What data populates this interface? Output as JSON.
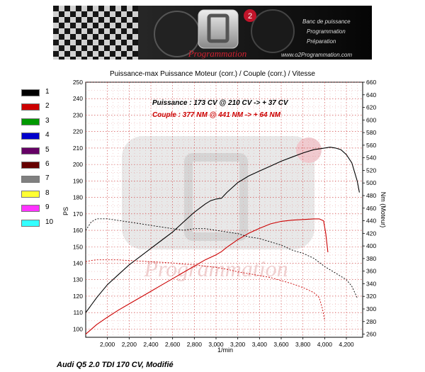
{
  "banner": {
    "logo_text": "Programmation",
    "menu": [
      "Banc de puissance",
      "Programmation",
      "Préparation"
    ],
    "url": "www.o2Programmation.com",
    "logo_badge": "2"
  },
  "legend": [
    {
      "label": "1",
      "color": "#000000"
    },
    {
      "label": "2",
      "color": "#cc0000"
    },
    {
      "label": "3",
      "color": "#009900"
    },
    {
      "label": "4",
      "color": "#0000cc"
    },
    {
      "label": "5",
      "color": "#660066"
    },
    {
      "label": "6",
      "color": "#660000"
    },
    {
      "label": "7",
      "color": "#808080"
    },
    {
      "label": "8",
      "color": "#ffff33"
    },
    {
      "label": "9",
      "color": "#ff33ff"
    },
    {
      "label": "10",
      "color": "#33ffff"
    }
  ],
  "footer": "Audi Q5 2.0 TDI 170 CV, Modifié",
  "chart_data": {
    "type": "line",
    "title": "Puissance-max Puissance Moteur (corr.) / Couple (corr.) / Vitesse",
    "annotations": [
      {
        "text": "Puissance :  173 CV @ 210 CV   -> + 37 CV",
        "color": "#000000"
      },
      {
        "text": "Couple :  377 NM @ 441 NM   -> + 64 NM",
        "color": "#cc0000"
      }
    ],
    "xlabel": "1/min",
    "ylabel_left": "PS",
    "ylabel_right": "Nm (Moteur)",
    "xlim": [
      1800,
      4350
    ],
    "ylim_left": [
      95,
      250
    ],
    "ylim_right": [
      255,
      660
    ],
    "x_ticks": [
      "2,000",
      "2,200",
      "2,400",
      "2,600",
      "2,800",
      "3,000",
      "3,200",
      "3,400",
      "3,600",
      "3,800",
      "4,000",
      "4,200"
    ],
    "x_tick_values": [
      2000,
      2200,
      2400,
      2600,
      2800,
      3000,
      3200,
      3400,
      3600,
      3800,
      4000,
      4200
    ],
    "y_left_ticks": [
      100,
      110,
      120,
      130,
      140,
      150,
      160,
      170,
      180,
      190,
      200,
      210,
      220,
      230,
      240,
      250
    ],
    "y_right_ticks": [
      260,
      280,
      300,
      320,
      340,
      360,
      380,
      400,
      420,
      440,
      460,
      480,
      500,
      520,
      540,
      560,
      580,
      600,
      620,
      640,
      660
    ],
    "grid": true,
    "series": [
      {
        "axis": "left",
        "color": "#000000",
        "style": "solid",
        "legend_label": "1",
        "x": [
          1800,
          1900,
          2000,
          2100,
          2200,
          2300,
          2400,
          2500,
          2600,
          2700,
          2800,
          2900,
          2950,
          3000,
          3050,
          3100,
          3200,
          3300,
          3400,
          3500,
          3600,
          3700,
          3800,
          3900,
          4000,
          4050,
          4100,
          4150,
          4200,
          4250,
          4300,
          4320
        ],
        "y": [
          110,
          119,
          127,
          133,
          139,
          144,
          149,
          154,
          159,
          165,
          171,
          176,
          178,
          179,
          179.5,
          183,
          189,
          193,
          196,
          199,
          202,
          204.5,
          207,
          209,
          210,
          210.5,
          210,
          209,
          206,
          201,
          190,
          183
        ]
      },
      {
        "axis": "right",
        "color": "#cc0000",
        "style": "solid",
        "legend_label": "2",
        "x": [
          1800,
          1900,
          2000,
          2100,
          2200,
          2300,
          2400,
          2500,
          2600,
          2700,
          2800,
          2900,
          3000,
          3050,
          3100,
          3200,
          3300,
          3400,
          3500,
          3600,
          3700,
          3800,
          3900,
          3950,
          3990,
          4010,
          4030
        ],
        "y": [
          260,
          275,
          287,
          298,
          308,
          318,
          328,
          338,
          348,
          358,
          368,
          378,
          386,
          391,
          398,
          410,
          420,
          428,
          435,
          439,
          441,
          442,
          443,
          443,
          440,
          420,
          390
        ]
      },
      {
        "axis": "left",
        "color": "#000000",
        "style": "dotted",
        "legend_label": "1",
        "x": [
          1800,
          1850,
          1900,
          2000,
          2100,
          2200,
          2300,
          2400,
          2500,
          2600,
          2700,
          2800,
          2900,
          3000,
          3100,
          3200,
          3300,
          3400,
          3500,
          3600,
          3700,
          3800,
          3900,
          4000,
          4100,
          4200,
          4250,
          4300
        ],
        "y": [
          160,
          165,
          167,
          167,
          166,
          165,
          164,
          163,
          162,
          161,
          160,
          161,
          161,
          160,
          159,
          158,
          156,
          155,
          153,
          151,
          148,
          146,
          143,
          138,
          134,
          130,
          126,
          119
        ]
      },
      {
        "axis": "right",
        "color": "#cc0000",
        "style": "dotted",
        "legend_label": "2",
        "x": [
          1800,
          1850,
          1900,
          2000,
          2100,
          2200,
          2300,
          2400,
          2500,
          2600,
          2700,
          2800,
          2900,
          3000,
          3100,
          3200,
          3300,
          3400,
          3500,
          3600,
          3700,
          3800,
          3900,
          3950,
          3980,
          4000
        ],
        "y": [
          375,
          377,
          378,
          378,
          378,
          377,
          376,
          375,
          374,
          373,
          371,
          370,
          368,
          366,
          363,
          359,
          356,
          353,
          350,
          345,
          340,
          334,
          326,
          318,
          300,
          282
        ]
      }
    ]
  }
}
